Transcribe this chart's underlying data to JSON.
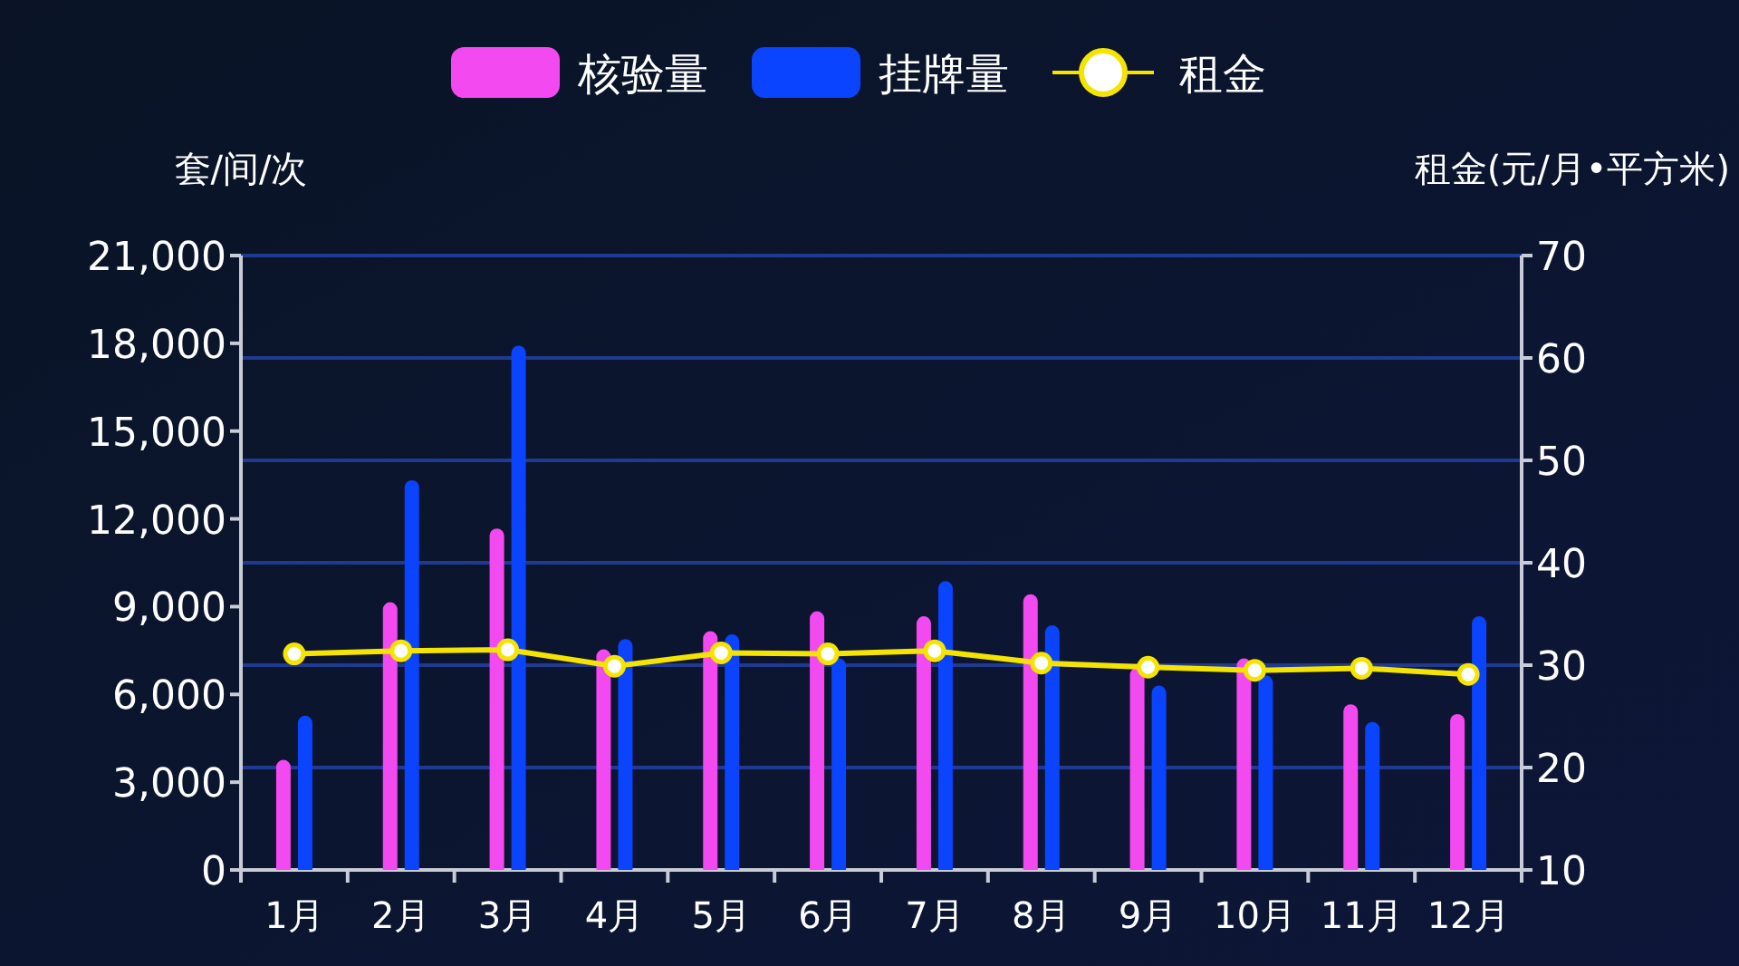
{
  "chart_data": {
    "type": "bar",
    "ylabel": "套/间/次",
    "y2label": "租金(元/月•平方米)",
    "categories": [
      "1月",
      "2月",
      "3月",
      "4月",
      "5月",
      "6月",
      "7月",
      "8月",
      "9月",
      "10月",
      "11月",
      "12月"
    ],
    "series": [
      {
        "name": "核验量",
        "color": "#f24af0",
        "values": [
          3760,
          9150,
          11670,
          7540,
          8160,
          8840,
          8670,
          9420,
          6920,
          7230,
          5660,
          5330
        ]
      },
      {
        "name": "挂牌量",
        "color": "#0a44ff",
        "values": [
          5270,
          13320,
          17920,
          7890,
          8050,
          7230,
          9870,
          8360,
          6300,
          6650,
          5060,
          8670
        ]
      },
      {
        "name": "租金",
        "type": "line",
        "axis": "y2",
        "color": "#f5e400",
        "marker": "circle",
        "values": [
          31.1,
          31.4,
          31.5,
          29.9,
          31.2,
          31.1,
          31.4,
          30.2,
          29.8,
          29.5,
          29.7,
          29.1
        ]
      }
    ],
    "ylim": [
      0,
      21000
    ],
    "yticks": [
      {
        "value": 0,
        "label": "0"
      },
      {
        "value": 3000,
        "label": "3,000"
      },
      {
        "value": 6000,
        "label": "6,000"
      },
      {
        "value": 9000,
        "label": "9,000"
      },
      {
        "value": 12000,
        "label": "12,000"
      },
      {
        "value": 15000,
        "label": "15,000"
      },
      {
        "value": 18000,
        "label": "18,000"
      },
      {
        "value": 21000,
        "label": "21,000"
      }
    ],
    "y2lim": [
      10,
      70
    ],
    "y2ticks": [
      10,
      20,
      30,
      40,
      50,
      60,
      70
    ],
    "grid": "y2",
    "legend": "top"
  }
}
